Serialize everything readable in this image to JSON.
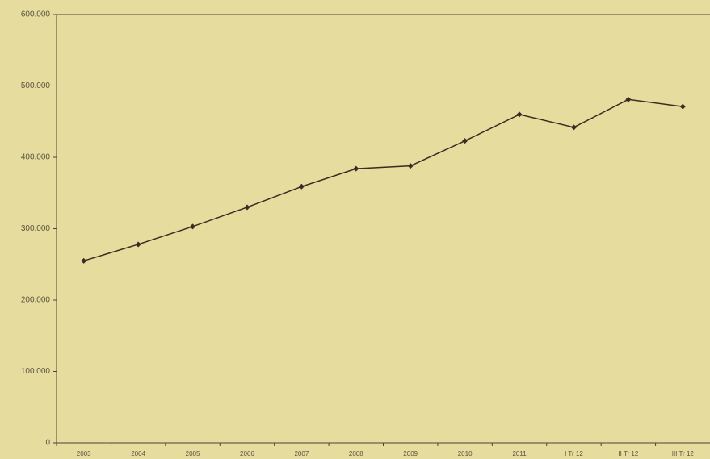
{
  "chart_data": {
    "type": "line",
    "categories": [
      "2003",
      "2004",
      "2005",
      "2006",
      "2007",
      "2008",
      "2009",
      "2010",
      "2011",
      "I Tr 12",
      "II Tr 12",
      "III Tr 12"
    ],
    "values": [
      255000,
      278000,
      303000,
      330000,
      359000,
      384000,
      388000,
      423000,
      460000,
      442000,
      481000,
      471000
    ],
    "color": "#3b2b22",
    "ylim": [
      0,
      600000
    ],
    "yticks": [
      0,
      {
        "value": 100000,
        "label": "100.000"
      },
      {
        "value": 200000,
        "label": "200.000"
      },
      {
        "value": 300000,
        "label": "300.000"
      },
      {
        "value": 400000,
        "label": "400.000"
      },
      {
        "value": 500000,
        "label": "500.000"
      },
      {
        "value": 600000,
        "label": "600.000"
      }
    ],
    "grid": false
  }
}
